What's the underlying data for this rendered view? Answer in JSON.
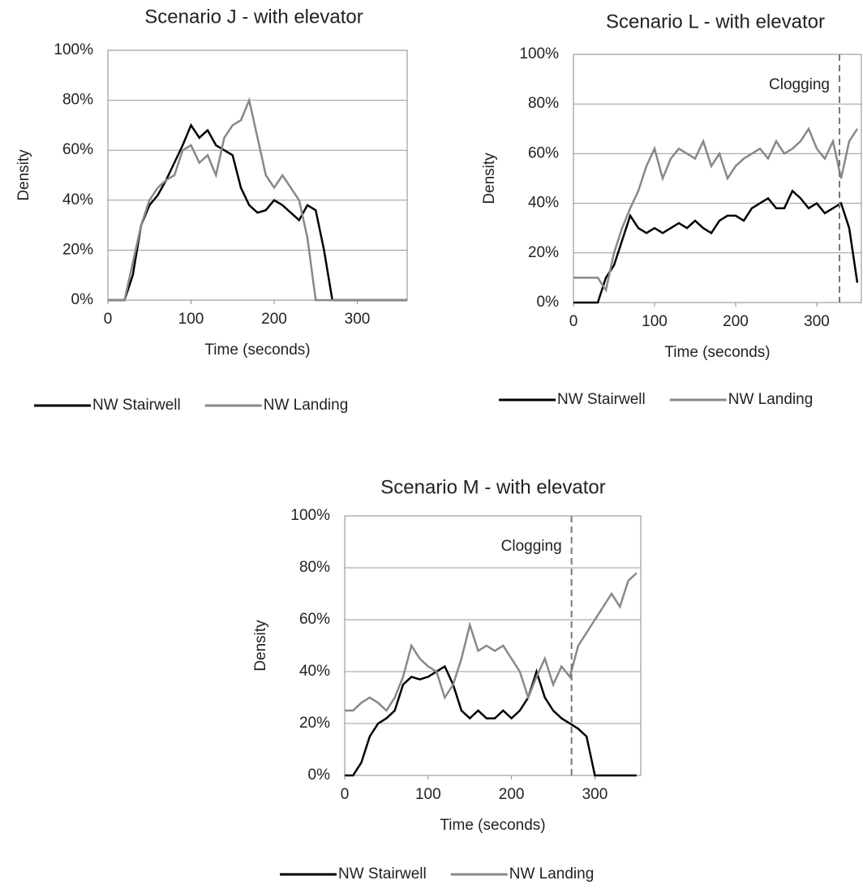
{
  "chart_data": [
    {
      "type": "line",
      "title": "Scenario J - with elevator",
      "x_label": "Time (seconds)",
      "y_label": "Density",
      "x": [
        0,
        10,
        20,
        30,
        40,
        50,
        60,
        70,
        80,
        90,
        100,
        110,
        120,
        130,
        140,
        150,
        160,
        170,
        180,
        190,
        200,
        210,
        220,
        230,
        240,
        250,
        260,
        270,
        280,
        290,
        300,
        310,
        320,
        330,
        340,
        350,
        360
      ],
      "series": [
        {
          "name": "NW Stairwell",
          "color": "#000000",
          "values": [
            0,
            0,
            0,
            10,
            30,
            38,
            42,
            48,
            55,
            62,
            70,
            65,
            68,
            62,
            60,
            58,
            45,
            38,
            35,
            36,
            40,
            38,
            35,
            32,
            38,
            36,
            20,
            0,
            0,
            0,
            0,
            0,
            0,
            0,
            0,
            0,
            0
          ]
        },
        {
          "name": "NW Landing",
          "color": "#888888",
          "values": [
            0,
            0,
            0,
            15,
            30,
            40,
            45,
            48,
            50,
            60,
            62,
            55,
            58,
            50,
            65,
            70,
            72,
            80,
            65,
            50,
            45,
            50,
            45,
            40,
            25,
            0,
            0,
            0,
            0,
            0,
            0,
            0,
            0,
            0,
            0,
            0,
            0
          ]
        }
      ],
      "xlim": [
        0,
        360
      ],
      "xticks": [
        0,
        100,
        200,
        300
      ],
      "ylim": [
        0,
        100
      ],
      "yticks": [
        {
          "value": 0,
          "label": "0%"
        },
        {
          "value": 20,
          "label": "20%"
        },
        {
          "value": 40,
          "label": "40%"
        },
        {
          "value": 60,
          "label": "60%"
        },
        {
          "value": 80,
          "label": "80%"
        },
        {
          "value": 100,
          "label": "100%"
        }
      ],
      "grid": true,
      "annotations": []
    },
    {
      "type": "line",
      "title": "Scenario L - with elevator",
      "x_label": "Time (seconds)",
      "y_label": "Density",
      "x": [
        0,
        10,
        20,
        30,
        40,
        50,
        60,
        70,
        80,
        90,
        100,
        110,
        120,
        130,
        140,
        150,
        160,
        170,
        180,
        190,
        200,
        210,
        220,
        230,
        240,
        250,
        260,
        270,
        280,
        290,
        300,
        310,
        320,
        330,
        340,
        350
      ],
      "series": [
        {
          "name": "NW Stairwell",
          "color": "#000000",
          "values": [
            0,
            0,
            0,
            0,
            10,
            15,
            25,
            35,
            30,
            28,
            30,
            28,
            30,
            32,
            30,
            33,
            30,
            28,
            33,
            35,
            35,
            33,
            38,
            40,
            42,
            38,
            38,
            45,
            42,
            38,
            40,
            36,
            38,
            40,
            30,
            8
          ]
        },
        {
          "name": "NW Landing",
          "color": "#888888",
          "values": [
            10,
            10,
            10,
            10,
            5,
            20,
            30,
            38,
            45,
            55,
            62,
            50,
            58,
            62,
            60,
            58,
            65,
            55,
            60,
            50,
            55,
            58,
            60,
            62,
            58,
            65,
            60,
            62,
            65,
            70,
            62,
            58,
            65,
            50,
            65,
            70
          ]
        }
      ],
      "xlim": [
        0,
        355
      ],
      "xticks": [
        0,
        100,
        200,
        300
      ],
      "ylim": [
        0,
        100
      ],
      "yticks": [
        {
          "value": 0,
          "label": "0%"
        },
        {
          "value": 20,
          "label": "20%"
        },
        {
          "value": 40,
          "label": "40%"
        },
        {
          "value": 60,
          "label": "60%"
        },
        {
          "value": 80,
          "label": "80%"
        },
        {
          "value": 100,
          "label": "100%"
        }
      ],
      "grid": true,
      "annotations": [
        {
          "text": "Clogging",
          "x": 328
        }
      ]
    },
    {
      "type": "line",
      "title": "Scenario M - with elevator",
      "x_label": "Time (seconds)",
      "y_label": "Density",
      "x": [
        0,
        10,
        20,
        30,
        40,
        50,
        60,
        70,
        80,
        90,
        100,
        110,
        120,
        130,
        140,
        150,
        160,
        170,
        180,
        190,
        200,
        210,
        220,
        230,
        240,
        250,
        260,
        270,
        280,
        290,
        300,
        310,
        320,
        330,
        340,
        350
      ],
      "series": [
        {
          "name": "NW Stairwell",
          "color": "#000000",
          "values": [
            0,
            0,
            5,
            15,
            20,
            22,
            25,
            35,
            38,
            37,
            38,
            40,
            42,
            35,
            25,
            22,
            25,
            22,
            22,
            25,
            22,
            25,
            30,
            40,
            30,
            25,
            22,
            20,
            18,
            15,
            0,
            0,
            0,
            0,
            0,
            0
          ]
        },
        {
          "name": "NW Landing",
          "color": "#888888",
          "values": [
            25,
            25,
            28,
            30,
            28,
            25,
            30,
            38,
            50,
            45,
            42,
            40,
            30,
            35,
            45,
            58,
            48,
            50,
            48,
            50,
            45,
            40,
            30,
            38,
            45,
            35,
            42,
            38,
            50,
            55,
            60,
            65,
            70,
            65,
            75,
            78
          ]
        }
      ],
      "xlim": [
        0,
        355
      ],
      "xticks": [
        0,
        100,
        200,
        300
      ],
      "ylim": [
        0,
        100
      ],
      "yticks": [
        {
          "value": 0,
          "label": "0%"
        },
        {
          "value": 20,
          "label": "20%"
        },
        {
          "value": 40,
          "label": "40%"
        },
        {
          "value": 60,
          "label": "60%"
        },
        {
          "value": 80,
          "label": "80%"
        },
        {
          "value": 100,
          "label": "100%"
        }
      ],
      "grid": true,
      "annotations": [
        {
          "text": "Clogging",
          "x": 272
        }
      ]
    }
  ]
}
